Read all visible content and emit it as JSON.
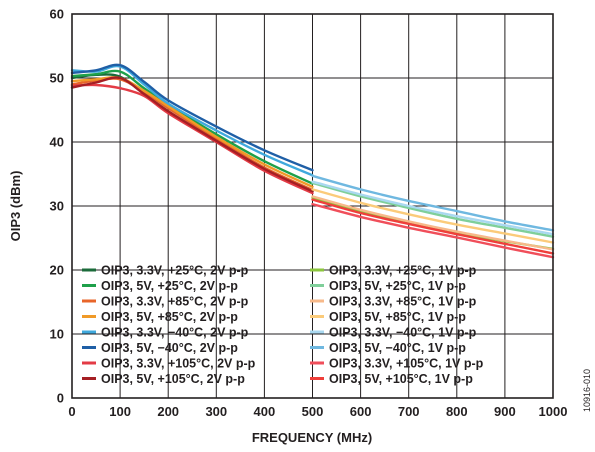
{
  "figure_id": "10916-010",
  "chart_data": {
    "type": "line",
    "title": "",
    "xlabel": "FREQUENCY (MHz)",
    "ylabel": "OIP3 (dBm)",
    "xlim": [
      0,
      1000
    ],
    "ylim": [
      0,
      60
    ],
    "xticks": [
      0,
      100,
      200,
      300,
      400,
      500,
      600,
      700,
      800,
      900,
      1000
    ],
    "yticks": [
      0,
      10,
      20,
      30,
      40,
      50,
      60
    ],
    "grid": true,
    "legend": "inside lower-left, two columns",
    "series": [
      {
        "name": "OIP3, 3.3V, +25°C, 2V p-p",
        "color": "#1b6b3a",
        "x": [
          0,
          50,
          100,
          150,
          200,
          300,
          400,
          500
        ],
        "y": [
          50.0,
          50.5,
          50.2,
          47.5,
          44.8,
          40.0,
          35.8,
          32.3
        ]
      },
      {
        "name": "OIP3, 5V, +25°C, 2V p-p",
        "color": "#1ea04a",
        "x": [
          0,
          50,
          100,
          150,
          200,
          300,
          400,
          500
        ],
        "y": [
          50.3,
          50.6,
          51.0,
          48.4,
          45.8,
          41.2,
          37.0,
          33.5
        ]
      },
      {
        "name": "OIP3, 3.3V, +85°C, 2V p-p",
        "color": "#e8652a",
        "x": [
          0,
          50,
          100,
          150,
          200,
          300,
          400,
          500
        ],
        "y": [
          49.0,
          49.6,
          49.8,
          47.8,
          45.3,
          40.5,
          36.0,
          32.5
        ]
      },
      {
        "name": "OIP3, 5V, +85°C, 2V p-p",
        "color": "#f09a28",
        "x": [
          0,
          50,
          100,
          150,
          200,
          300,
          400,
          500
        ],
        "y": [
          49.5,
          49.8,
          50.0,
          48.0,
          45.6,
          40.8,
          36.5,
          33.0
        ]
      },
      {
        "name": "OIP3, 3.3V, −40°C, 2V p-p",
        "color": "#3fa9dd",
        "x": [
          0,
          50,
          100,
          150,
          200,
          300,
          400,
          500
        ],
        "y": [
          51.2,
          51.0,
          51.8,
          49.0,
          46.0,
          41.8,
          38.0,
          34.8
        ]
      },
      {
        "name": "OIP3, 5V, −40°C, 2V p-p",
        "color": "#1f5fa6",
        "x": [
          0,
          50,
          100,
          150,
          200,
          300,
          400,
          500
        ],
        "y": [
          50.8,
          51.2,
          52.0,
          49.4,
          46.5,
          42.4,
          38.7,
          35.6
        ]
      },
      {
        "name": "OIP3, 3.3V, +105°C, 2V p-p",
        "color": "#e33b45",
        "x": [
          0,
          50,
          100,
          150,
          200,
          300,
          400,
          500
        ],
        "y": [
          48.8,
          48.9,
          48.4,
          47.2,
          44.5,
          40.0,
          35.5,
          32.0
        ]
      },
      {
        "name": "OIP3, 5V, +105°C, 2V p-p",
        "color": "#a51f24",
        "x": [
          0,
          50,
          100,
          150,
          200,
          300,
          400,
          500
        ],
        "y": [
          48.5,
          49.3,
          50.0,
          47.5,
          44.8,
          40.2,
          35.8,
          32.3
        ]
      },
      {
        "name": "OIP3, 3.3V, +25°C, 1V p-p",
        "color": "#8cc63e",
        "x": [
          500,
          600,
          700,
          800,
          900,
          1000
        ],
        "y": [
          31.3,
          29.2,
          27.4,
          25.8,
          24.5,
          23.3
        ]
      },
      {
        "name": "OIP3, 5V, +25°C, 1V p-p",
        "color": "#7fcf9a",
        "x": [
          500,
          600,
          700,
          800,
          900,
          1000
        ],
        "y": [
          33.6,
          31.5,
          29.7,
          28.0,
          26.6,
          25.2
        ]
      },
      {
        "name": "OIP3, 3.3V, +85°C, 1V p-p",
        "color": "#f7b98a",
        "x": [
          500,
          600,
          700,
          800,
          900,
          1000
        ],
        "y": [
          31.5,
          29.4,
          27.6,
          26.0,
          24.6,
          23.2
        ]
      },
      {
        "name": "OIP3, 5V, +85°C, 1V p-p",
        "color": "#fbcb7a",
        "x": [
          500,
          600,
          700,
          800,
          900,
          1000
        ],
        "y": [
          32.6,
          30.5,
          28.7,
          27.1,
          25.7,
          24.3
        ]
      },
      {
        "name": "OIP3, 3.3V, −40°C, 1V p-p",
        "color": "#a9d8f0",
        "x": [
          500,
          600,
          700,
          800,
          900,
          1000
        ],
        "y": [
          33.8,
          31.8,
          30.0,
          28.4,
          27.0,
          25.6
        ]
      },
      {
        "name": "OIP3, 5V, −40°C, 1V p-p",
        "color": "#6fb8e0",
        "x": [
          500,
          600,
          700,
          800,
          900,
          1000
        ],
        "y": [
          34.7,
          32.6,
          30.8,
          29.2,
          27.6,
          26.2
        ]
      },
      {
        "name": "OIP3, 3.3V, +105°C, 1V p-p",
        "color": "#f04e5a",
        "x": [
          500,
          600,
          700,
          800,
          900,
          1000
        ],
        "y": [
          30.3,
          28.3,
          26.6,
          25.1,
          23.5,
          22.0
        ]
      },
      {
        "name": "OIP3, 5V, +105°C, 1V p-p",
        "color": "#ef3f3a",
        "x": [
          500,
          600,
          700,
          800,
          900,
          1000
        ],
        "y": [
          31.0,
          28.9,
          27.2,
          25.6,
          24.1,
          22.6
        ]
      }
    ]
  }
}
